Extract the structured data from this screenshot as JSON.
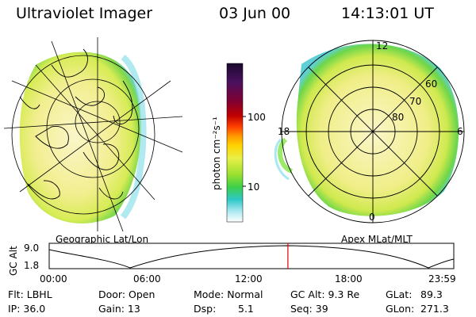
{
  "header": {
    "title": "Ultraviolet Imager",
    "date": "03 Jun 00",
    "time": "14:13:01 UT"
  },
  "left_panel": {
    "label": "Geographic Lat/Lon"
  },
  "right_panel": {
    "label": "Apex MLat/MLT",
    "mlt_labels": {
      "noon": "12",
      "dusk": "18",
      "dawn": "6",
      "midnight": "0"
    },
    "lat_labels": [
      "60",
      "70",
      "80"
    ]
  },
  "colorbar": {
    "unit": "photon cm⁻²s⁻¹",
    "ticks": [
      "100",
      "10"
    ],
    "colors": [
      "#1a0a2e",
      "#4b1060",
      "#800030",
      "#c00000",
      "#ff4000",
      "#ff9900",
      "#ffd400",
      "#e8f04a",
      "#9be02e",
      "#3ecf4a",
      "#2ec8c8",
      "#a8e8f0",
      "#ffffff"
    ]
  },
  "timeline": {
    "ylabel": "GC Alt",
    "y_ticks": [
      "9.0",
      "1.8"
    ],
    "x_ticks": [
      "00:00",
      "06:00",
      "12:00",
      "18:00",
      "23:59"
    ],
    "current_time_fraction": 0.59,
    "marker_color": "#e00000"
  },
  "info": {
    "flt": "Flt: LBHL",
    "ip": "IP: 36.0",
    "door": "Door: Open",
    "gain": "Gain: 13",
    "mode": "Mode: Normal",
    "dsp_label": "Dsp:",
    "dsp_value": "5.1",
    "gc_alt": "GC Alt: 9.3 Re",
    "seq": "Seq: 39",
    "glat_label": "GLat:",
    "glat_value": "89.3",
    "glon_label": "GLon:",
    "glon_value": "271.3"
  }
}
